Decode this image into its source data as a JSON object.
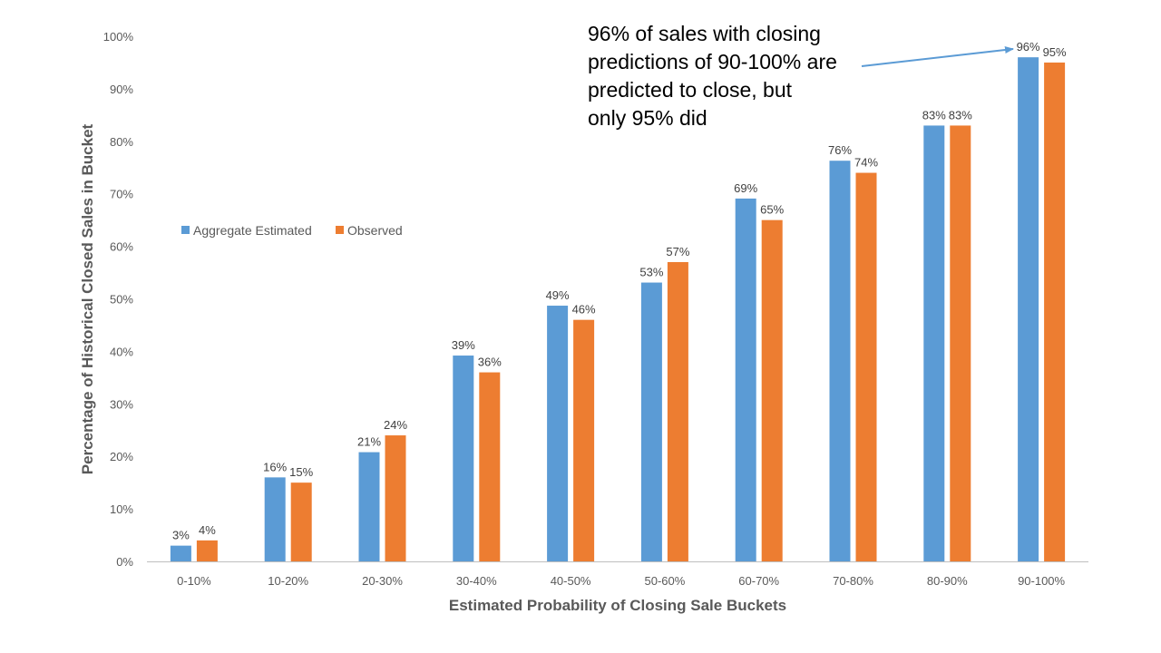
{
  "colors": {
    "aggregate_estimated": "#5B9BD5",
    "observed": "#ED7D31",
    "axis_line": "#BFBFBF"
  },
  "annotation": {
    "lines": [
      "96% of sales with closing",
      "predictions of 90-100% are",
      "predicted to close, but",
      "only 95% did"
    ],
    "arrow_color": "#5B9BD5"
  },
  "chart_data": {
    "type": "bar",
    "title": "",
    "xlabel": "Estimated  Probability  of Closing  Sale Buckets",
    "ylabel": "Percentage of Historical Closed Sales in Bucket",
    "ylim": [
      0,
      100
    ],
    "yticks": [
      "0%",
      "10%",
      "20%",
      "30%",
      "40%",
      "50%",
      "60%",
      "70%",
      "80%",
      "90%",
      "100%"
    ],
    "grid": false,
    "legend_position": "left, upper-middle",
    "categories": [
      "0-10%",
      "10-20%",
      "20-30%",
      "30-40%",
      "40-50%",
      "50-60%",
      "60-70%",
      "70-80%",
      "80-90%",
      "90-100%"
    ],
    "series": [
      {
        "name": "Aggregate Estimated",
        "values": [
          3,
          16,
          20.8,
          39.2,
          48.7,
          53.1,
          69.1,
          76.3,
          83,
          96
        ],
        "labels": [
          "3%",
          "16%",
          "21%",
          "39%",
          "49%",
          "53%",
          "69%",
          "76%",
          "83%",
          "96%"
        ]
      },
      {
        "name": "Observed",
        "values": [
          4,
          15,
          24,
          36,
          46,
          57,
          65,
          74,
          83,
          95
        ],
        "labels": [
          "4%",
          "15%",
          "24%",
          "36%",
          "46%",
          "57%",
          "65%",
          "74%",
          "83%",
          "95%"
        ]
      }
    ]
  }
}
